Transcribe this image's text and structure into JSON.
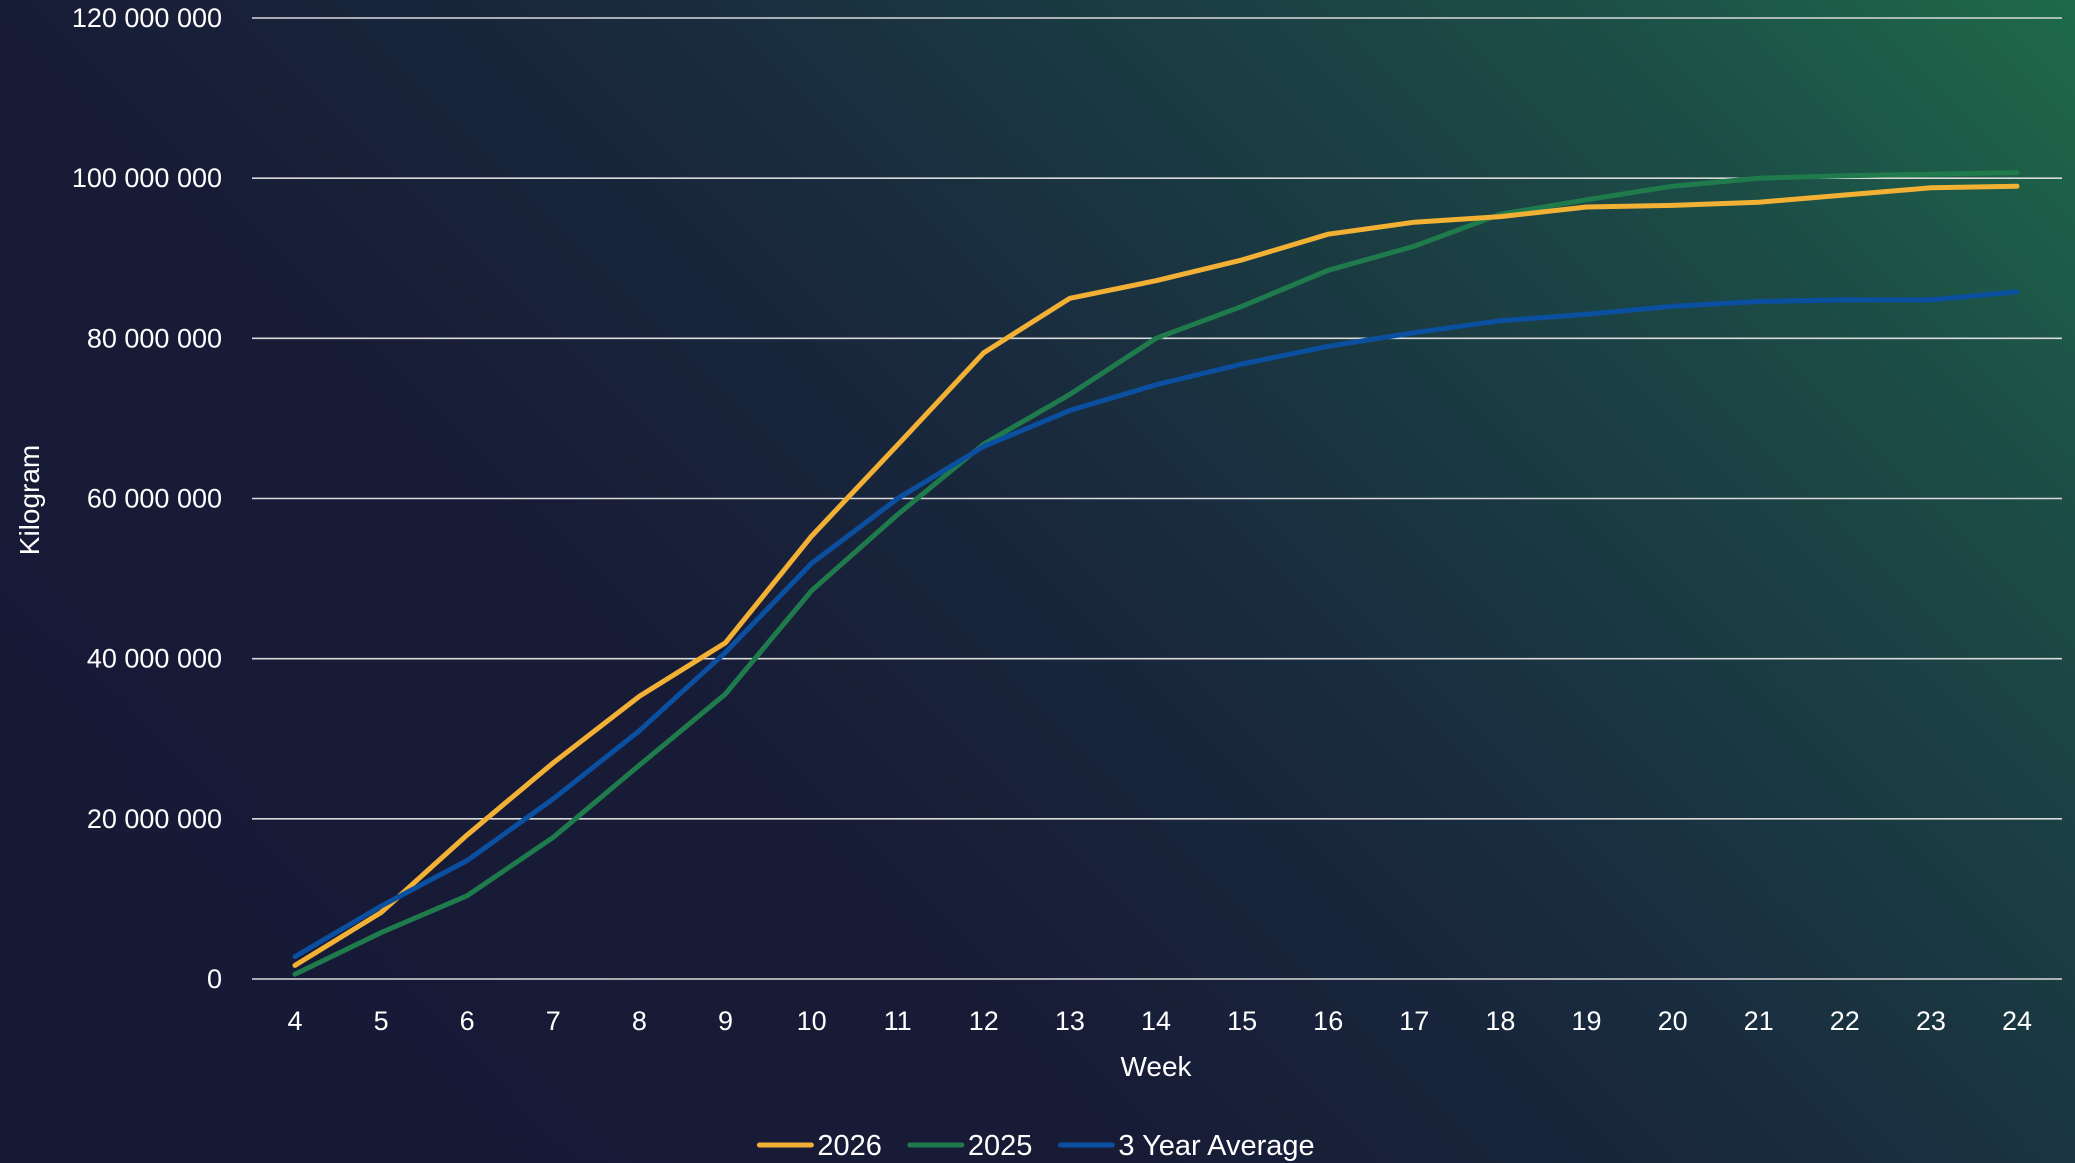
{
  "chart_data": {
    "type": "line",
    "title": "",
    "xlabel": "Week",
    "ylabel": "Kilogram",
    "x": [
      4,
      5,
      6,
      7,
      8,
      9,
      10,
      11,
      12,
      13,
      14,
      15,
      16,
      17,
      18,
      19,
      20,
      21,
      22,
      23,
      24
    ],
    "ylim": [
      0,
      120000000
    ],
    "yticks": [
      0,
      20000000,
      40000000,
      60000000,
      80000000,
      100000000,
      120000000
    ],
    "ytick_labels": [
      "0",
      "20 000 000",
      "40 000 000",
      "60 000 000",
      "80 000 000",
      "100 000 000",
      "120 000 000"
    ],
    "grid": "horizontal",
    "legend_position": "bottom",
    "series": [
      {
        "name": "2026",
        "color": "#f2b134",
        "values": [
          1700000,
          8300000,
          18000000,
          27000000,
          35300000,
          42000000,
          55300000,
          66700000,
          78200000,
          85000000,
          87200000,
          89800000,
          93000000,
          94500000,
          95200000,
          96400000,
          96600000,
          97000000,
          97900000,
          98800000,
          99000000
        ]
      },
      {
        "name": "2025",
        "color": "#1f7a4c",
        "values": [
          600000,
          5800000,
          10400000,
          17700000,
          26700000,
          35600000,
          48500000,
          58000000,
          66800000,
          73000000,
          80000000,
          84000000,
          88500000,
          91500000,
          95500000,
          97300000,
          99000000,
          100000000,
          100300000,
          100500000,
          100700000
        ]
      },
      {
        "name": "3 Year Average",
        "color": "#0b4fa0",
        "values": [
          2800000,
          9100000,
          14800000,
          22500000,
          31000000,
          40800000,
          51900000,
          60000000,
          66500000,
          71000000,
          74200000,
          76800000,
          79000000,
          80700000,
          82200000,
          83000000,
          84000000,
          84600000,
          84800000,
          84800000,
          85800000
        ]
      }
    ]
  }
}
